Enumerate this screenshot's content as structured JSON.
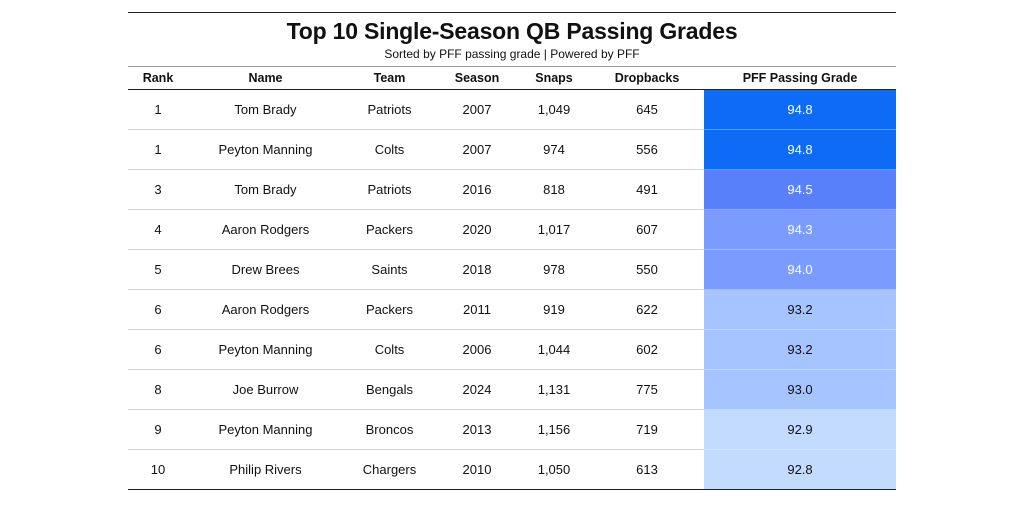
{
  "title": "Top 10 Single-Season QB Passing Grades",
  "subtitle": "Sorted by PFF passing grade | Powered by PFF",
  "columns": [
    "Rank",
    "Name",
    "Team",
    "Season",
    "Snaps",
    "Dropbacks",
    "PFF Passing Grade"
  ],
  "grade_color_scale": [
    "#c3dbff",
    "#a6c4ff",
    "#7b9bff",
    "#5880fb",
    "#0e6bf6"
  ],
  "chart_data": {
    "type": "table",
    "title": "Top 10 Single-Season QB Passing Grades",
    "subtitle": "Sorted by PFF passing grade | Powered by PFF",
    "columns": [
      "Rank",
      "Name",
      "Team",
      "Season",
      "Snaps",
      "Dropbacks",
      "PFF Passing Grade"
    ],
    "rows": [
      {
        "rank": "1",
        "name": "Tom Brady",
        "team": "Patriots",
        "season": "2007",
        "snaps": "1,049",
        "dropbacks": "645",
        "grade": "94.8"
      },
      {
        "rank": "1",
        "name": "Peyton Manning",
        "team": "Colts",
        "season": "2007",
        "snaps": "974",
        "dropbacks": "556",
        "grade": "94.8"
      },
      {
        "rank": "3",
        "name": "Tom Brady",
        "team": "Patriots",
        "season": "2016",
        "snaps": "818",
        "dropbacks": "491",
        "grade": "94.5"
      },
      {
        "rank": "4",
        "name": "Aaron Rodgers",
        "team": "Packers",
        "season": "2020",
        "snaps": "1,017",
        "dropbacks": "607",
        "grade": "94.3"
      },
      {
        "rank": "5",
        "name": "Drew Brees",
        "team": "Saints",
        "season": "2018",
        "snaps": "978",
        "dropbacks": "550",
        "grade": "94.0"
      },
      {
        "rank": "6",
        "name": "Aaron Rodgers",
        "team": "Packers",
        "season": "2011",
        "snaps": "919",
        "dropbacks": "622",
        "grade": "93.2"
      },
      {
        "rank": "6",
        "name": "Peyton Manning",
        "team": "Colts",
        "season": "2006",
        "snaps": "1,044",
        "dropbacks": "602",
        "grade": "93.2"
      },
      {
        "rank": "8",
        "name": "Joe Burrow",
        "team": "Bengals",
        "season": "2024",
        "snaps": "1,131",
        "dropbacks": "775",
        "grade": "93.0"
      },
      {
        "rank": "9",
        "name": "Peyton Manning",
        "team": "Broncos",
        "season": "2013",
        "snaps": "1,156",
        "dropbacks": "719",
        "grade": "92.9"
      },
      {
        "rank": "10",
        "name": "Philip Rivers",
        "team": "Chargers",
        "season": "2010",
        "snaps": "1,050",
        "dropbacks": "613",
        "grade": "92.8"
      }
    ]
  }
}
